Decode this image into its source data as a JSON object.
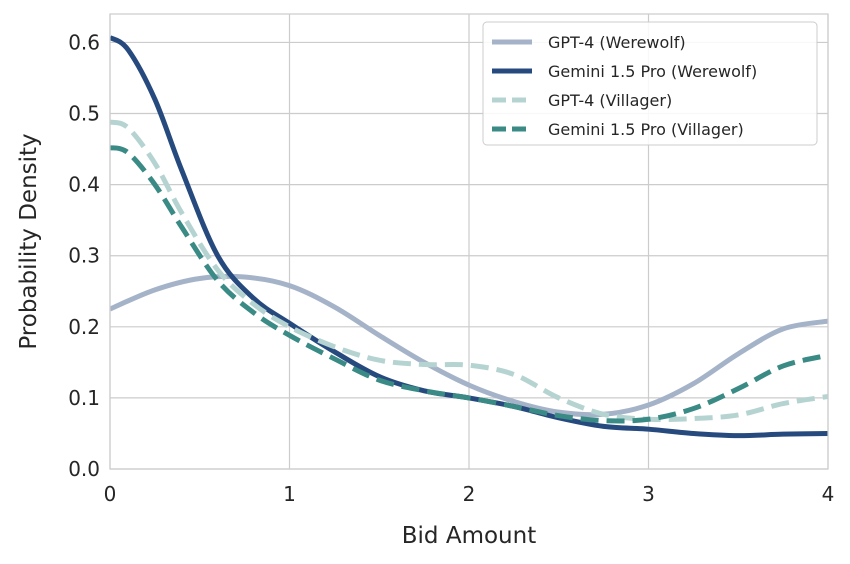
{
  "chart_data": {
    "type": "line",
    "xlabel": "Bid Amount",
    "ylabel": "Probability Density",
    "xlim": [
      0,
      4
    ],
    "ylim": [
      0,
      0.64
    ],
    "x_ticks": [
      "0",
      "1",
      "2",
      "3",
      "4"
    ],
    "y_ticks": [
      "0.0",
      "0.1",
      "0.2",
      "0.3",
      "0.4",
      "0.5",
      "0.6"
    ],
    "grid": true,
    "legend_position": "top-right",
    "series": [
      {
        "name": "GPT-4 (Werewolf)",
        "color": "#a5b3c9",
        "style": "solid",
        "x": [
          0,
          0.25,
          0.5,
          0.75,
          1.0,
          1.25,
          1.5,
          1.75,
          2.0,
          2.25,
          2.5,
          2.75,
          3.0,
          3.25,
          3.5,
          3.75,
          4.0
        ],
        "y": [
          0.225,
          0.252,
          0.268,
          0.27,
          0.258,
          0.228,
          0.188,
          0.15,
          0.118,
          0.095,
          0.08,
          0.077,
          0.09,
          0.12,
          0.162,
          0.197,
          0.208
        ]
      },
      {
        "name": "Gemini 1.5 Pro (Werewolf)",
        "color": "#264a7e",
        "style": "solid",
        "x": [
          0,
          0.1,
          0.25,
          0.4,
          0.6,
          0.8,
          1.0,
          1.25,
          1.5,
          1.75,
          2.0,
          2.25,
          2.5,
          2.75,
          3.0,
          3.25,
          3.5,
          3.75,
          4.0
        ],
        "y": [
          0.607,
          0.59,
          0.52,
          0.42,
          0.3,
          0.24,
          0.205,
          0.165,
          0.13,
          0.11,
          0.1,
          0.088,
          0.072,
          0.06,
          0.056,
          0.05,
          0.047,
          0.049,
          0.05
        ]
      },
      {
        "name": "GPT-4 (Villager)",
        "color": "#b5d4d1",
        "style": "dashed",
        "x": [
          0,
          0.1,
          0.25,
          0.4,
          0.6,
          0.8,
          1.0,
          1.25,
          1.5,
          1.75,
          2.0,
          2.25,
          2.5,
          2.75,
          3.0,
          3.25,
          3.5,
          3.75,
          4.0
        ],
        "y": [
          0.488,
          0.48,
          0.43,
          0.36,
          0.28,
          0.232,
          0.2,
          0.172,
          0.153,
          0.147,
          0.146,
          0.133,
          0.1,
          0.077,
          0.07,
          0.071,
          0.076,
          0.092,
          0.102
        ]
      },
      {
        "name": "Gemini 1.5 Pro (Villager)",
        "color": "#3a8a85",
        "style": "dashed",
        "x": [
          0,
          0.1,
          0.25,
          0.4,
          0.6,
          0.8,
          1.0,
          1.25,
          1.5,
          1.75,
          2.0,
          2.25,
          2.5,
          2.75,
          3.0,
          3.25,
          3.5,
          3.75,
          4.0
        ],
        "y": [
          0.452,
          0.445,
          0.4,
          0.34,
          0.265,
          0.22,
          0.188,
          0.155,
          0.125,
          0.11,
          0.1,
          0.088,
          0.075,
          0.068,
          0.07,
          0.085,
          0.113,
          0.145,
          0.16
        ]
      }
    ]
  }
}
